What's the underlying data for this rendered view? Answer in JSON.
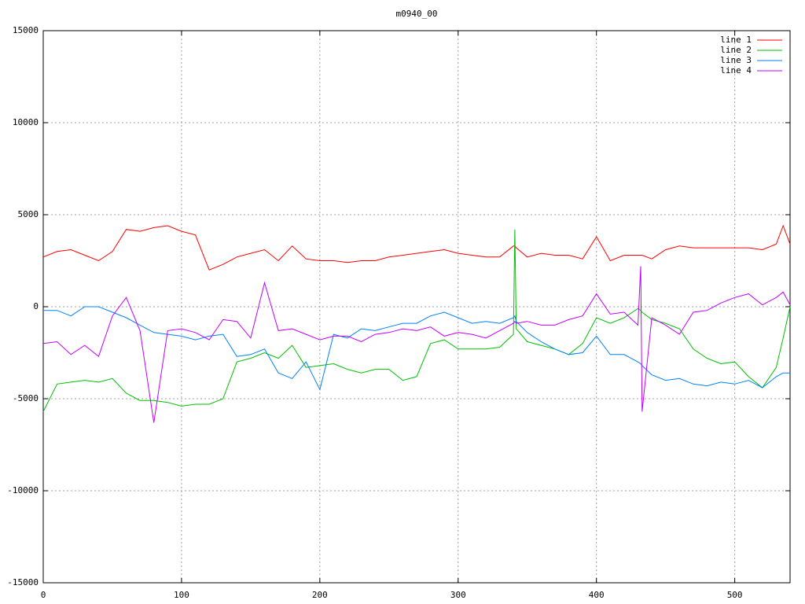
{
  "chart_data": {
    "type": "line",
    "title": "m0940_00",
    "x": [
      0,
      10,
      20,
      30,
      40,
      50,
      60,
      70,
      80,
      90,
      100,
      110,
      120,
      130,
      140,
      150,
      160,
      170,
      180,
      190,
      200,
      210,
      220,
      230,
      240,
      250,
      260,
      270,
      280,
      290,
      300,
      310,
      320,
      330,
      340,
      341,
      342,
      350,
      360,
      370,
      380,
      390,
      400,
      410,
      420,
      430,
      432,
      433,
      440,
      450,
      460,
      470,
      480,
      490,
      500,
      510,
      520,
      530,
      535,
      540
    ],
    "series": [
      {
        "name": "line 1",
        "color": "#ff0000",
        "values": [
          2700,
          3000,
          3100,
          2800,
          2500,
          3000,
          4200,
          4100,
          4300,
          4400,
          4100,
          3900,
          2000,
          2300,
          2700,
          2900,
          3100,
          2500,
          3300,
          2600,
          2500,
          2500,
          2400,
          2500,
          2500,
          2700,
          2800,
          2900,
          3000,
          3100,
          2900,
          2800,
          2700,
          2700,
          3300,
          3300,
          3200,
          2700,
          2900,
          2800,
          2800,
          2600,
          3800,
          2500,
          2800,
          2800,
          2800,
          2800,
          2600,
          3100,
          3300,
          3200,
          3200,
          3200,
          3200,
          3200,
          3100,
          3400,
          4400,
          3400
        ]
      },
      {
        "name": "line 2",
        "color": "#00c000",
        "values": [
          -5700,
          -4200,
          -4100,
          -4000,
          -4100,
          -3900,
          -4700,
          -5100,
          -5100,
          -5200,
          -5400,
          -5300,
          -5300,
          -5000,
          -3000,
          -2800,
          -2500,
          -2800,
          -2100,
          -3300,
          -3200,
          -3100,
          -3400,
          -3600,
          -3400,
          -3400,
          -4000,
          -3800,
          -2000,
          -1800,
          -2300,
          -2300,
          -2300,
          -2200,
          -1500,
          4200,
          -1200,
          -1900,
          -2100,
          -2300,
          -2600,
          -2000,
          -600,
          -900,
          -600,
          -100,
          -200,
          -300,
          -700,
          -900,
          -1200,
          -2300,
          -2800,
          -3100,
          -3000,
          -3800,
          -4400,
          -3300,
          -1700,
          0
        ]
      },
      {
        "name": "line 3",
        "color": "#0080ff",
        "values": [
          -200,
          -200,
          -500,
          0,
          0,
          -300,
          -600,
          -1000,
          -1400,
          -1500,
          -1600,
          -1800,
          -1600,
          -1500,
          -2700,
          -2600,
          -2300,
          -3600,
          -3900,
          -3000,
          -4500,
          -1500,
          -1700,
          -1200,
          -1300,
          -1100,
          -900,
          -900,
          -500,
          -300,
          -600,
          -900,
          -800,
          -900,
          -600,
          -500,
          -800,
          -1400,
          -1900,
          -2300,
          -2600,
          -2500,
          -1600,
          -2600,
          -2600,
          -3000,
          -3100,
          -3200,
          -3700,
          -4000,
          -3900,
          -4200,
          -4300,
          -4100,
          -4200,
          -4000,
          -4400,
          -3800,
          -3600,
          -3600
        ]
      },
      {
        "name": "line 4",
        "color": "#c000ff",
        "values": [
          -2000,
          -1900,
          -2600,
          -2100,
          -2700,
          -500,
          500,
          -1300,
          -6300,
          -1300,
          -1200,
          -1400,
          -1800,
          -700,
          -800,
          -1700,
          1300,
          -1300,
          -1200,
          -1500,
          -1800,
          -1600,
          -1600,
          -1900,
          -1500,
          -1400,
          -1200,
          -1300,
          -1100,
          -1600,
          -1400,
          -1500,
          -1700,
          -1300,
          -900,
          -800,
          -900,
          -800,
          -1000,
          -1000,
          -700,
          -500,
          700,
          -400,
          -300,
          -1000,
          2200,
          -5700,
          -600,
          -1000,
          -1500,
          -300,
          -200,
          200,
          500,
          700,
          100,
          500,
          800,
          100
        ]
      }
    ],
    "xlim": [
      0,
      540
    ],
    "xticks": [
      0,
      100,
      200,
      300,
      400,
      500
    ],
    "ylim": [
      -15000,
      15000
    ],
    "yticks": [
      -15000,
      -10000,
      -5000,
      0,
      5000,
      10000,
      15000
    ],
    "grid": true,
    "legend": "top-right"
  }
}
